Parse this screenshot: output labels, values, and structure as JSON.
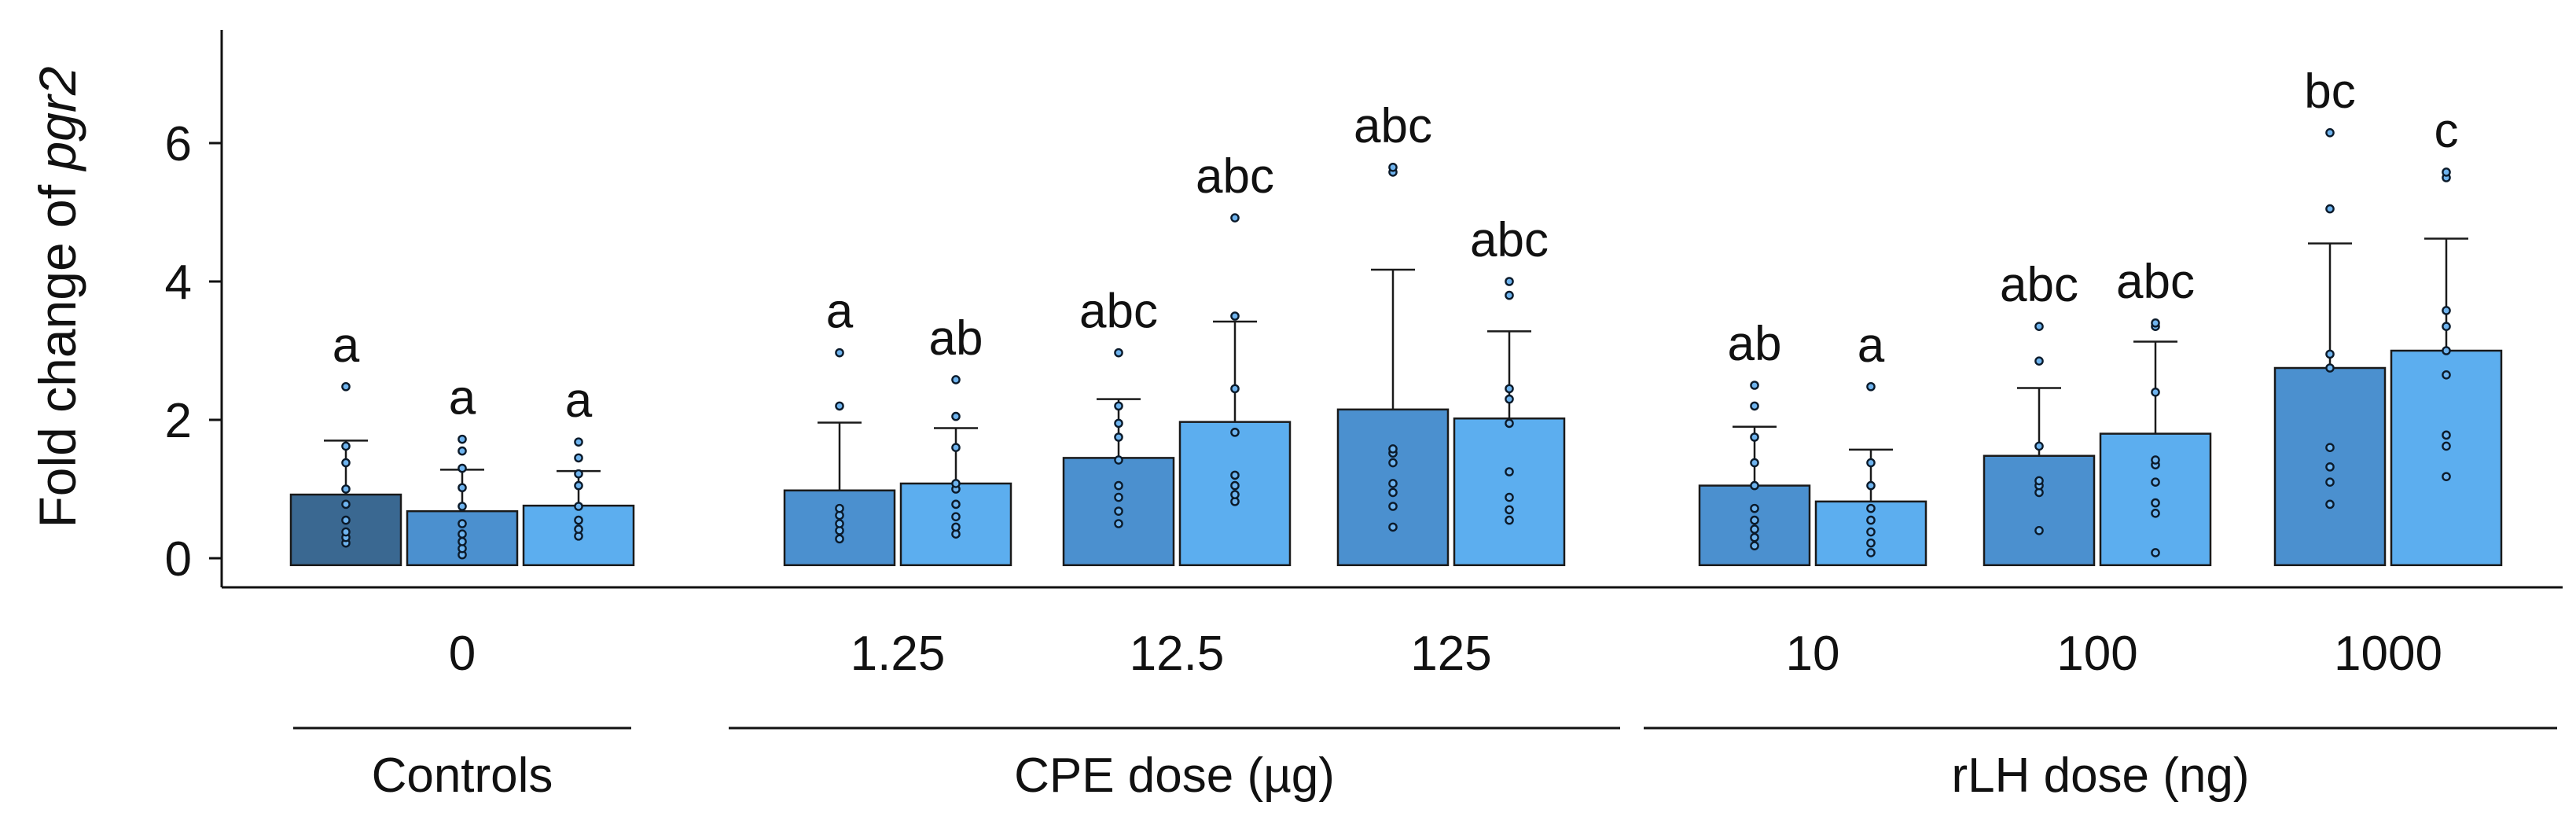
{
  "chart_data": {
    "type": "bar",
    "ylabel": "Fold change of",
    "ylabel_italic": "pgr2",
    "ylim": [
      -0.1,
      7.6
    ],
    "yticks": [
      0,
      2,
      4,
      6
    ],
    "colors": {
      "dark": "#3a6891",
      "mid": "#4b90cf",
      "light": "#5caeef"
    },
    "categories": [
      {
        "label": "0",
        "group": "Controls",
        "bars": [
          {
            "value": 0.92,
            "error": 0.78,
            "sig": "a",
            "color": "dark",
            "points": [
              0.22,
              0.3,
              0.38,
              0.55,
              0.78,
              1.0,
              1.38,
              1.62,
              2.48
            ]
          },
          {
            "value": 0.68,
            "error": 0.6,
            "sig": "a",
            "color": "mid",
            "points": [
              0.05,
              0.14,
              0.24,
              0.35,
              0.5,
              0.75,
              1.02,
              1.3,
              1.55,
              1.72
            ]
          },
          {
            "value": 0.76,
            "error": 0.5,
            "sig": "a",
            "color": "light",
            "points": [
              0.32,
              0.42,
              0.55,
              0.75,
              1.05,
              1.22,
              1.45,
              1.68
            ]
          }
        ]
      },
      {
        "label": "1.25",
        "group": "CPE dose (µg)",
        "bars": [
          {
            "value": 0.98,
            "error": 0.98,
            "sig": "a",
            "color": "mid",
            "points": [
              0.28,
              0.4,
              0.5,
              0.62,
              0.72,
              2.2,
              2.97
            ]
          },
          {
            "value": 1.08,
            "error": 0.8,
            "sig": "ab",
            "color": "light",
            "points": [
              0.35,
              0.45,
              0.6,
              0.78,
              1.0,
              1.08,
              1.6,
              2.05,
              2.58
            ]
          }
        ]
      },
      {
        "label": "12.5",
        "group": "CPE dose (µg)",
        "bars": [
          {
            "value": 1.45,
            "error": 0.85,
            "sig": "abc",
            "color": "mid",
            "points": [
              0.5,
              0.68,
              0.88,
              1.05,
              1.42,
              1.75,
              1.95,
              2.2,
              2.97
            ]
          },
          {
            "value": 1.97,
            "error": 1.45,
            "sig": "abc",
            "color": "light",
            "points": [
              0.82,
              0.92,
              1.05,
              1.2,
              1.82,
              2.45,
              3.5,
              4.92
            ]
          }
        ]
      },
      {
        "label": "125",
        "group": "CPE dose (µg)",
        "bars": [
          {
            "value": 2.15,
            "error": 2.02,
            "sig": "abc",
            "color": "mid",
            "points": [
              0.45,
              0.75,
              0.95,
              1.08,
              1.38,
              1.52,
              1.58,
              5.58,
              5.65
            ]
          },
          {
            "value": 2.02,
            "error": 1.26,
            "sig": "abc",
            "color": "light",
            "points": [
              0.55,
              0.7,
              0.88,
              1.25,
              1.95,
              2.3,
              2.45,
              3.8,
              4.0
            ]
          }
        ]
      },
      {
        "label": "10",
        "group": "rLH dose (ng)",
        "bars": [
          {
            "value": 1.05,
            "error": 0.85,
            "sig": "ab",
            "color": "mid",
            "points": [
              0.18,
              0.3,
              0.42,
              0.55,
              0.72,
              1.05,
              1.38,
              1.75,
              2.2,
              2.5
            ]
          },
          {
            "value": 0.82,
            "error": 0.75,
            "sig": "a",
            "color": "light",
            "points": [
              0.08,
              0.22,
              0.38,
              0.55,
              0.72,
              1.05,
              1.38,
              2.48
            ]
          }
        ]
      },
      {
        "label": "100",
        "group": "rLH dose (ng)",
        "bars": [
          {
            "value": 1.48,
            "error": 0.98,
            "sig": "abc",
            "color": "mid",
            "points": [
              0.4,
              0.95,
              1.05,
              1.12,
              1.62,
              2.85,
              3.35
            ]
          },
          {
            "value": 1.8,
            "error": 1.33,
            "sig": "abc",
            "color": "light",
            "points": [
              0.08,
              0.65,
              0.8,
              1.1,
              1.35,
              1.42,
              2.4,
              3.35,
              3.4
            ]
          }
        ]
      },
      {
        "label": "1000",
        "group": "rLH dose (ng)",
        "bars": [
          {
            "value": 2.75,
            "error": 1.8,
            "sig": "bc",
            "color": "mid",
            "points": [
              0.78,
              1.1,
              1.32,
              1.6,
              2.75,
              2.95,
              5.05,
              6.15
            ]
          },
          {
            "value": 3.0,
            "error": 1.62,
            "sig": "c",
            "color": "light",
            "points": [
              1.18,
              1.62,
              1.78,
              2.65,
              3.0,
              3.35,
              3.58,
              5.5,
              5.58
            ]
          }
        ]
      }
    ],
    "groups": [
      {
        "label": "Controls",
        "categories": [
          "0"
        ]
      },
      {
        "label": "CPE dose (µg)",
        "categories": [
          "1.25",
          "12.5",
          "125"
        ]
      },
      {
        "label": "rLH dose (ng)",
        "categories": [
          "10",
          "100",
          "1000"
        ]
      }
    ]
  }
}
